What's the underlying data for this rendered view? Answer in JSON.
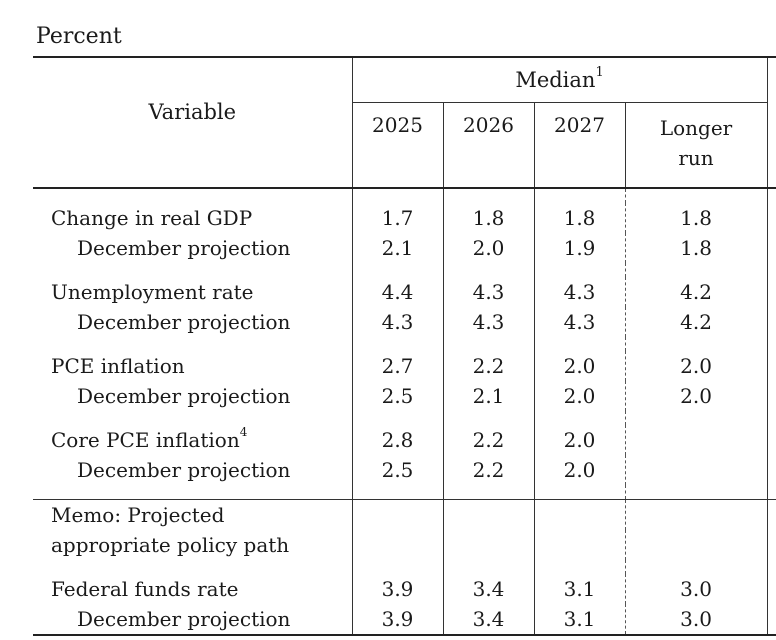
{
  "unit_label": "Percent",
  "header": {
    "variable": "Variable",
    "median": "Median",
    "median_note": "1",
    "years": [
      "2025",
      "2026",
      "2027"
    ],
    "longer_run_line1": "Longer",
    "longer_run_line2": "run"
  },
  "rows": [
    {
      "label": "Change in real GDP",
      "values": [
        "1.7",
        "1.8",
        "1.8",
        "1.8"
      ]
    },
    {
      "label": "December projection",
      "values": [
        "2.1",
        "2.0",
        "1.9",
        "1.8"
      ]
    },
    {
      "label": "Unemployment rate",
      "values": [
        "4.4",
        "4.3",
        "4.3",
        "4.2"
      ]
    },
    {
      "label": "December projection",
      "values": [
        "4.3",
        "4.3",
        "4.3",
        "4.2"
      ]
    },
    {
      "label": "PCE inflation",
      "values": [
        "2.7",
        "2.2",
        "2.0",
        "2.0"
      ]
    },
    {
      "label": "December projection",
      "values": [
        "2.5",
        "2.1",
        "2.0",
        "2.0"
      ]
    },
    {
      "label": "Core PCE inflation",
      "note": "4",
      "values": [
        "2.8",
        "2.2",
        "2.0",
        ""
      ]
    },
    {
      "label": "December projection",
      "values": [
        "2.5",
        "2.2",
        "2.0",
        ""
      ]
    }
  ],
  "memo": {
    "line1": "Memo: Projected",
    "line2": "appropriate policy path"
  },
  "memo_rows": [
    {
      "label": "Federal funds rate",
      "values": [
        "3.9",
        "3.4",
        "3.1",
        "3.0"
      ]
    },
    {
      "label": "December projection",
      "values": [
        "3.9",
        "3.4",
        "3.1",
        "3.0"
      ]
    }
  ]
}
